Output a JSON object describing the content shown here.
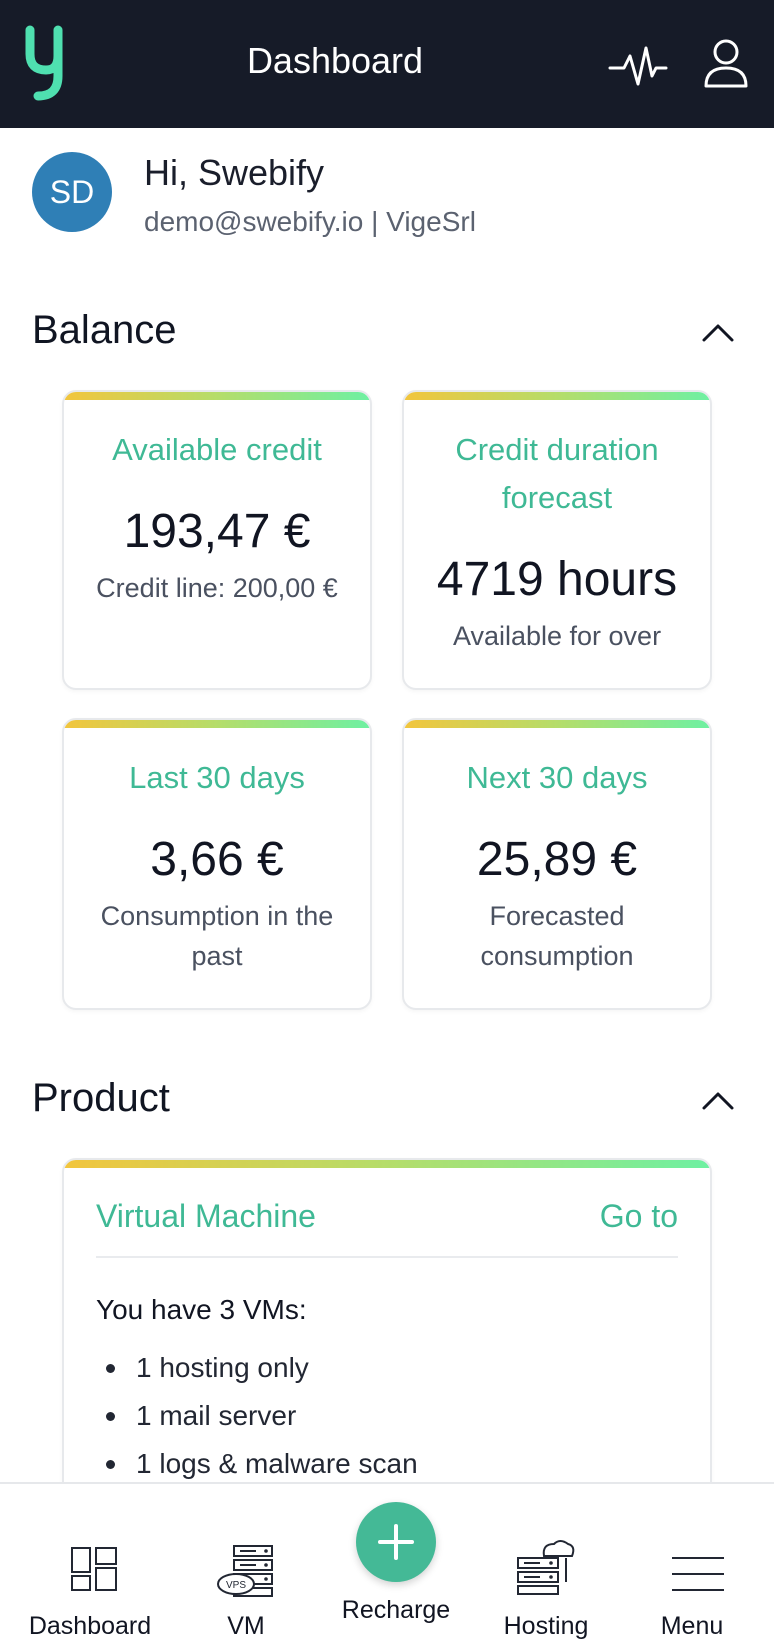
{
  "header": {
    "title": "Dashboard",
    "logo_icon": "brand-logo-icon",
    "activity_icon": "activity-pulse-icon",
    "account_icon": "user-icon",
    "background": "#161b28"
  },
  "profile": {
    "avatar_initials": "SD",
    "greeting": "Hi, Swebify",
    "email_line": "demo@swebify.io | VigeSrl",
    "avatar_color": "#2f7fb6"
  },
  "balance": {
    "section_title": "Balance",
    "cards": [
      {
        "label": "Available credit",
        "value": "193,47 €",
        "sub": "Credit line: 200,00 €"
      },
      {
        "label": "Credit duration forecast",
        "value": "4719 hours",
        "sub": "Available for over"
      },
      {
        "label": "Last 30 days",
        "value": "3,66 €",
        "sub": "Consumption in the past"
      },
      {
        "label": "Next 30 days",
        "value": "25,89 €",
        "sub": "Forecasted consumption"
      }
    ]
  },
  "product": {
    "section_title": "Product",
    "card": {
      "title": "Virtual Machine",
      "goto_label": "Go to",
      "summary": "You have 3 VMs:",
      "items": [
        "1 hosting only",
        "1 mail server",
        "1 logs & malware scan"
      ]
    }
  },
  "bottom_nav": {
    "items": [
      {
        "label": "Dashboard",
        "icon": "dashboard-grid-icon"
      },
      {
        "label": "VM",
        "icon": "vps-server-icon"
      },
      {
        "label": "Recharge",
        "icon": "plus-icon"
      },
      {
        "label": "Hosting",
        "icon": "cloud-server-icon"
      },
      {
        "label": "Menu",
        "icon": "hamburger-menu-icon"
      }
    ]
  },
  "colors": {
    "accent": "#3fb995",
    "fab": "#44b996",
    "card_gradient_start": "#f2c53d",
    "card_gradient_end": "#6ef0a2"
  }
}
